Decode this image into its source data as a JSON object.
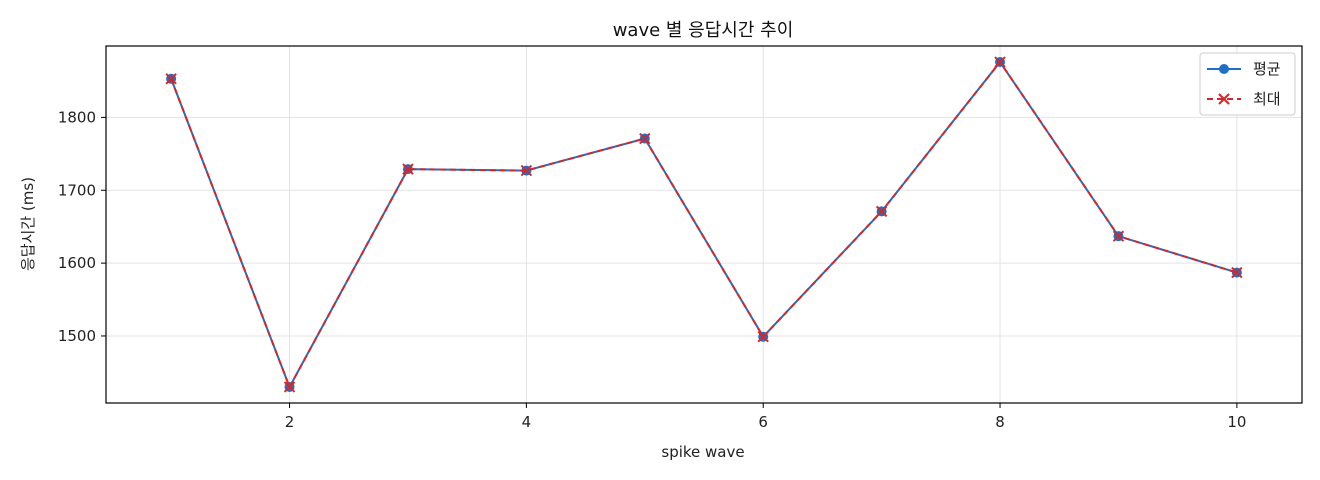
{
  "chart_data": {
    "type": "line",
    "title": "wave 별 응답시간 추이",
    "xlabel": "spike wave",
    "ylabel": "응답시간 (ms)",
    "x": [
      1,
      2,
      3,
      4,
      5,
      6,
      7,
      8,
      9,
      10
    ],
    "xticks": [
      2,
      4,
      6,
      8,
      10
    ],
    "yticks": [
      1500,
      1600,
      1700,
      1800
    ],
    "xlim": [
      0.45,
      10.55
    ],
    "ylim": [
      1408,
      1898
    ],
    "grid": true,
    "legend_position": "top-right",
    "series": [
      {
        "name": "평균",
        "values": [
          1853,
          1430,
          1729,
          1727,
          1771,
          1499,
          1671,
          1876,
          1637,
          1587
        ],
        "color": "#1f6fc5",
        "line_style": "solid",
        "marker": "circle"
      },
      {
        "name": "최대",
        "values": [
          1853,
          1430,
          1729,
          1727,
          1771,
          1499,
          1671,
          1876,
          1637,
          1587
        ],
        "color": "#d62728",
        "line_style": "dashed",
        "marker": "x"
      }
    ]
  }
}
